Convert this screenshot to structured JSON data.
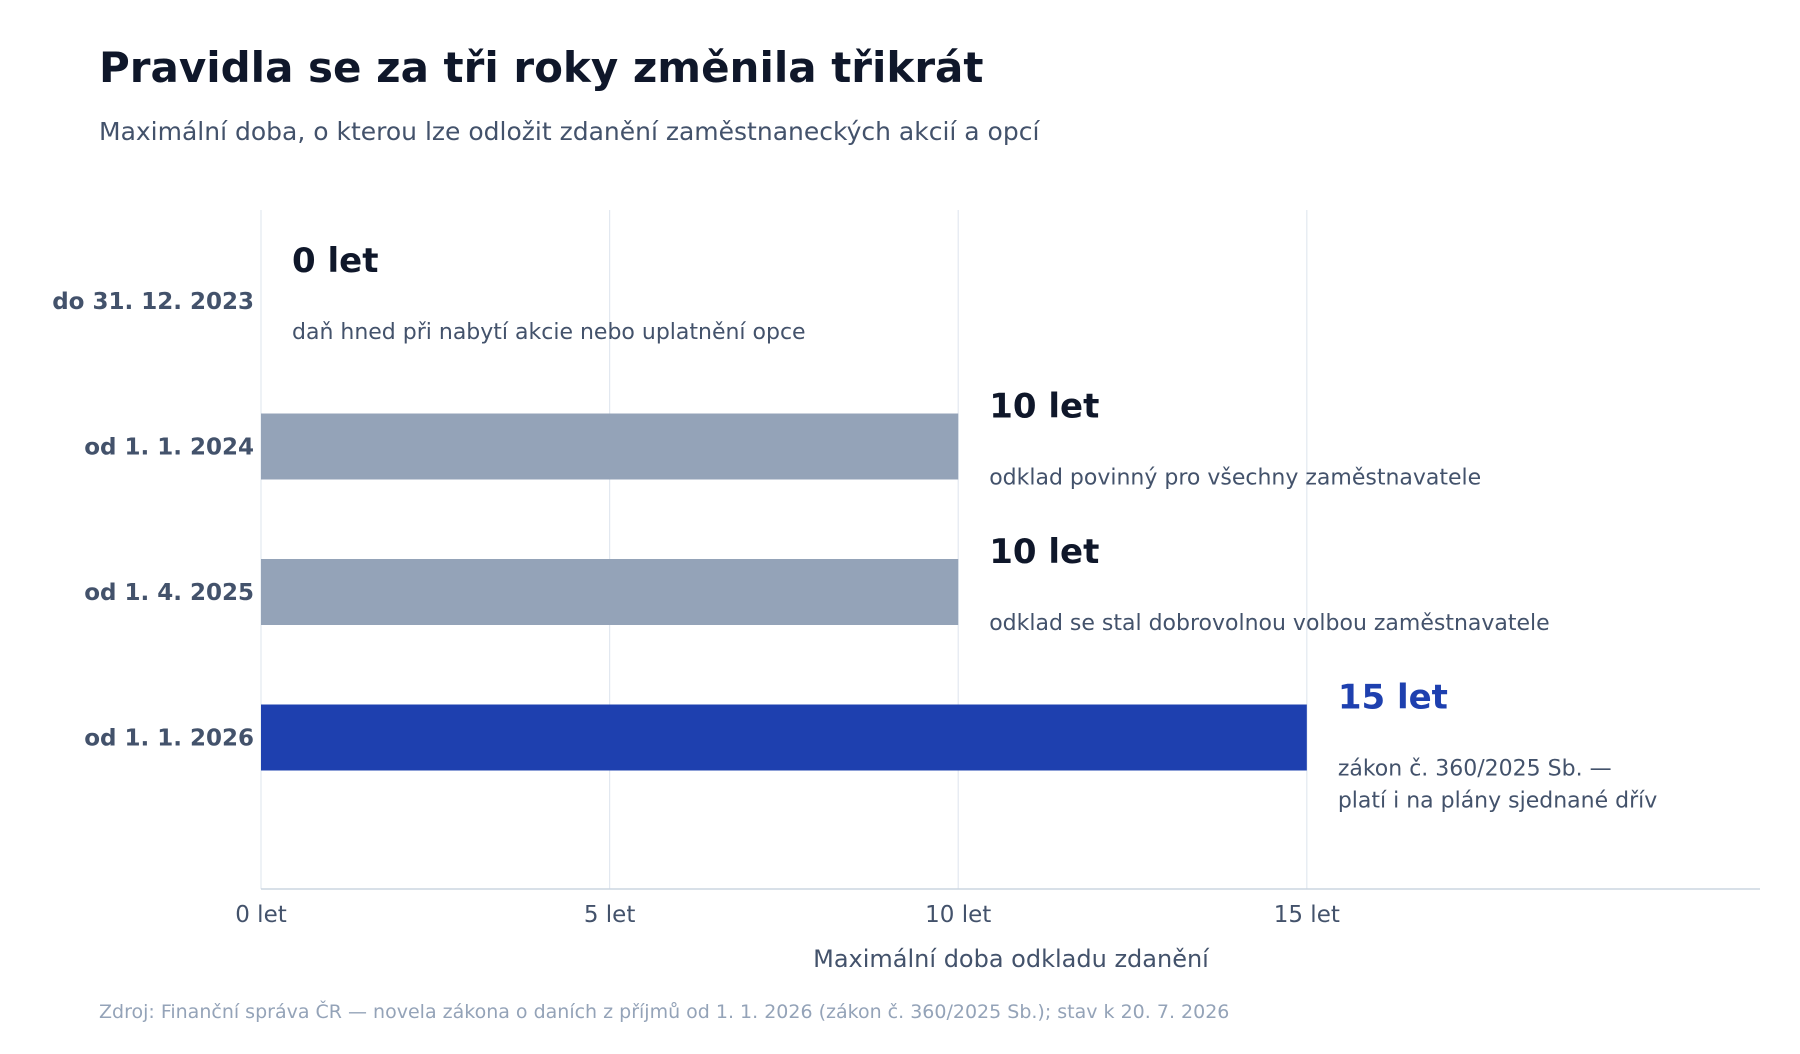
{
  "colors": {
    "title": "#0f172a",
    "text": "#43526b",
    "muted": "#94a3b8",
    "bar_grey": "#94a3b8",
    "bar_accent": "#1e40af",
    "grid": "#e2e8f0",
    "axis": "#cbd5e1"
  },
  "chart_data": {
    "type": "bar",
    "orientation": "horizontal",
    "title": "Pravidla se za tři roky změnila třikrát",
    "subtitle": "Maximální doba, o kterou lze odložit zdanění zaměstnaneckých akcií a opcí",
    "xlabel": "Maximální doba odkladu zdanění",
    "ylabel": "",
    "xlim": [
      0,
      21.5
    ],
    "x_ticks": [
      0,
      5,
      10,
      15
    ],
    "x_tick_labels": [
      "0 let",
      "5 let",
      "10 let",
      "15 let"
    ],
    "grid": "vertical",
    "legend": "none",
    "categories": [
      "do 31. 12. 2023",
      "od 1. 1. 2024",
      "od 1. 4. 2025",
      "od 1. 1. 2026"
    ],
    "values": [
      0,
      10,
      10,
      15
    ],
    "value_labels": [
      "0 let",
      "10 let",
      "10 let",
      "15 let"
    ],
    "bar_colors": [
      "#94a3b8",
      "#94a3b8",
      "#94a3b8",
      "#1e40af"
    ],
    "highlight": [
      false,
      false,
      false,
      true
    ],
    "annotations": [
      [
        "daň hned při nabytí akcie nebo uplatnění opce"
      ],
      [
        "odklad povinný pro všechny zaměstnavatele"
      ],
      [
        "odklad se stal dobrovolnou volbou zaměstnavatele"
      ],
      [
        "zákon č. 360/2025 Sb. —",
        "platí i na plány sjednané dřív"
      ]
    ],
    "source": "Zdroj: Finanční správa ČR — novela zákona o daních z příjmů od 1. 1. 2026 (zákon č. 360/2025 Sb.); stav k 20. 7. 2026"
  }
}
